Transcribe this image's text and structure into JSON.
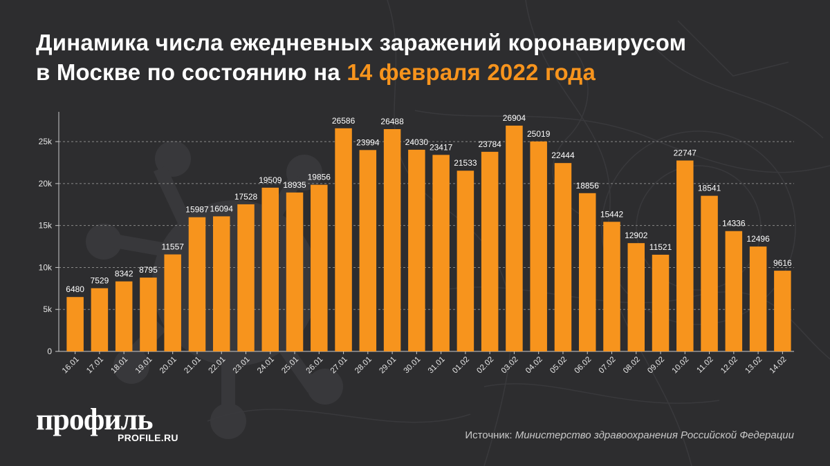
{
  "title": {
    "line1": "Динамика числа ежедневных заражений коронавирусом",
    "line2_prefix": "в Москве по состоянию на ",
    "line2_accent": "14 февраля 2022 года"
  },
  "colors": {
    "background": "#2d2d2f",
    "bar": "#f7941d",
    "accent": "#f7941d",
    "text": "#ffffff",
    "grid": "#8a8a8a"
  },
  "chart_data": {
    "type": "bar",
    "title": "Динамика числа ежедневных заражений коронавирусом в Москве по состоянию на 14 февраля 2022 года",
    "xlabel": "",
    "ylabel": "",
    "ylim": [
      0,
      29000
    ],
    "yticks": [
      0,
      5000,
      10000,
      15000,
      20000,
      25000
    ],
    "ytick_labels": [
      "0",
      "5k",
      "10k",
      "15k",
      "20k",
      "25k"
    ],
    "grid": "horizontal dashed",
    "categories": [
      "16.01",
      "17.01",
      "18.01",
      "19.01",
      "20.01",
      "21.01",
      "22.01",
      "23.01",
      "24.01",
      "25.01",
      "26.01",
      "27.01",
      "28.01",
      "29.01",
      "30.01",
      "31.01",
      "01.02",
      "02.02",
      "03.02",
      "04.02",
      "05.02",
      "06.02",
      "07.02",
      "08.02",
      "09.02",
      "10.02",
      "11.02",
      "12.02",
      "13.02",
      "14.02"
    ],
    "values": [
      6480,
      7529,
      8342,
      8795,
      11557,
      15987,
      16094,
      17528,
      19509,
      18935,
      19856,
      26586,
      23994,
      26488,
      24030,
      23417,
      21533,
      23784,
      26904,
      25019,
      22444,
      18856,
      15442,
      12902,
      11521,
      22747,
      18541,
      14336,
      12496,
      9616
    ]
  },
  "logo": {
    "word": "профиль",
    "site": "PROFILE.RU"
  },
  "source": {
    "label": "Источник: ",
    "text": "Министерство здравоохранения Российской Федерации"
  }
}
